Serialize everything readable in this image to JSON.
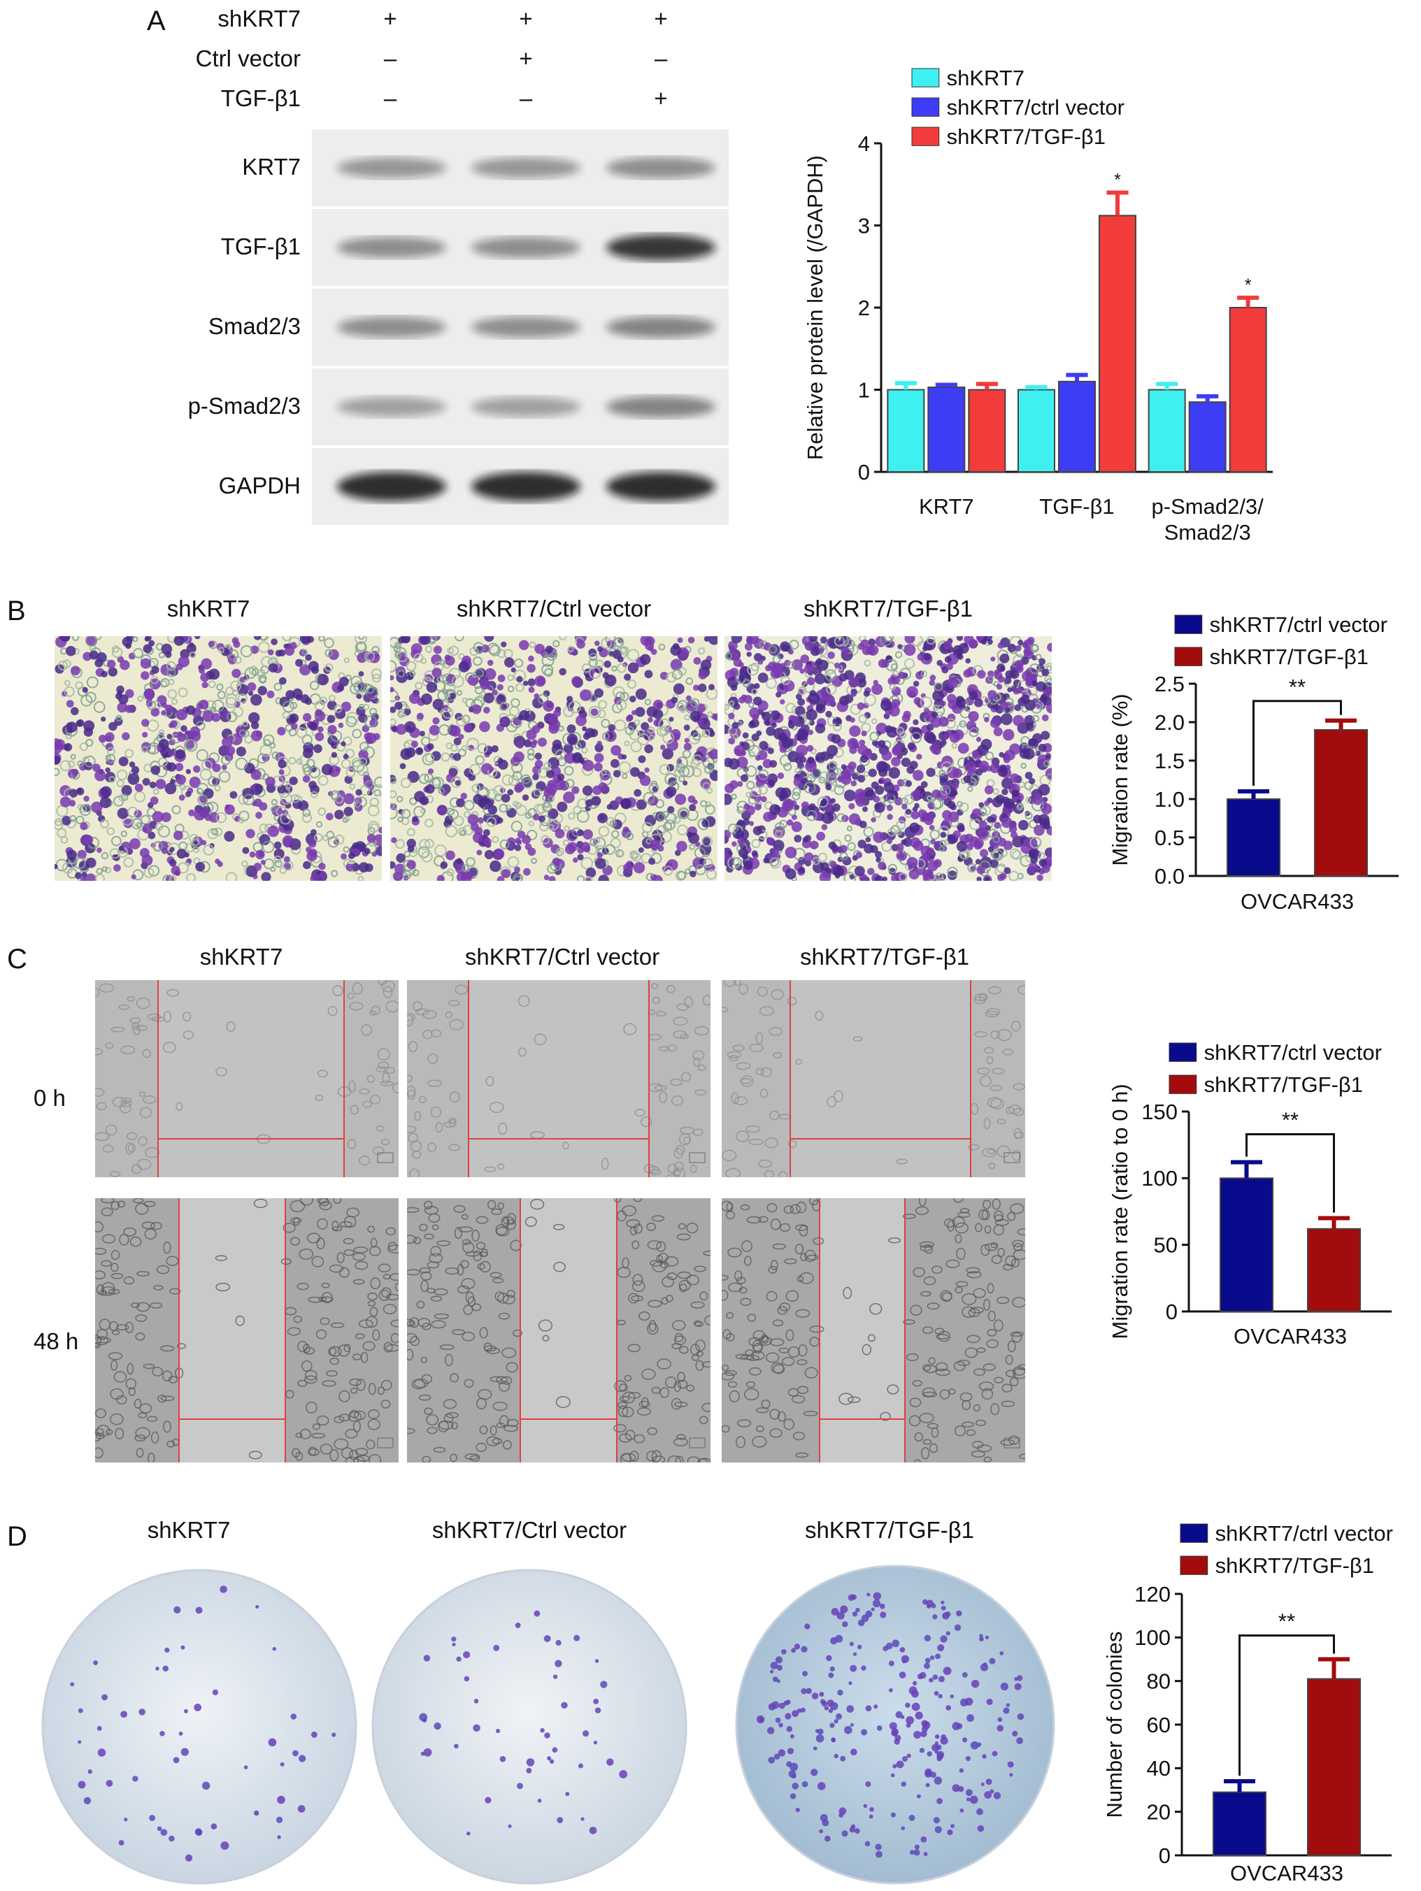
{
  "panels": {
    "a": "A",
    "b": "B",
    "c": "C",
    "d": "D"
  },
  "panel_a": {
    "conditions": [
      {
        "label": "shKRT7",
        "marks": [
          "+",
          "+",
          "+"
        ]
      },
      {
        "label": "Ctrl vector",
        "marks": [
          "–",
          "+",
          "–"
        ]
      },
      {
        "label": "TGF-β1",
        "marks": [
          "–",
          "–",
          "+"
        ]
      }
    ],
    "blot_rows": [
      "KRT7",
      "TGF-β1",
      "Smad2/3",
      "p-Smad2/3",
      "GAPDH"
    ],
    "band_intensity": [
      [
        0.45,
        0.45,
        0.5
      ],
      [
        0.5,
        0.5,
        0.95
      ],
      [
        0.5,
        0.5,
        0.55
      ],
      [
        0.4,
        0.4,
        0.55
      ],
      [
        1.0,
        1.0,
        1.0
      ]
    ]
  },
  "photo_headers": [
    "shKRT7",
    "shKRT7/Ctrl vector",
    "shKRT7/TGF-β1"
  ],
  "panel_c_rows": [
    "0 h",
    "48 h"
  ],
  "chart_data": [
    {
      "type": "bar",
      "panel": "A",
      "ylabel": "Relative protein level (/GAPDH)",
      "ylim": [
        0,
        4
      ],
      "yticks": [
        0,
        1,
        2,
        3,
        4
      ],
      "categories": [
        "KRT7",
        "TGF-β1",
        "p-Smad2/3/\nSmad2/3"
      ],
      "category_lines": [
        [
          "KRT7"
        ],
        [
          "TGF-β1"
        ],
        [
          "p-Smad2/3/",
          "Smad2/3"
        ]
      ],
      "series": [
        {
          "name": "shKRT7",
          "color": "#3ff0f0",
          "values": [
            1.0,
            1.0,
            1.0
          ],
          "errors": [
            0.08,
            0.03,
            0.07
          ],
          "sig": [
            "",
            "",
            ""
          ]
        },
        {
          "name": "shKRT7/ctrl vector",
          "color": "#3d3df5",
          "values": [
            1.03,
            1.1,
            0.85
          ],
          "errors": [
            0.03,
            0.08,
            0.07
          ],
          "sig": [
            "",
            "",
            ""
          ]
        },
        {
          "name": "shKRT7/TGF-β1",
          "color": "#f23c3c",
          "values": [
            1.0,
            3.12,
            2.0
          ],
          "errors": [
            0.07,
            0.28,
            0.12
          ],
          "sig": [
            "",
            "*",
            "*"
          ]
        }
      ],
      "legend": "top"
    },
    {
      "type": "bar",
      "panel": "B",
      "ylabel": "Migration rate (%)",
      "ylim": [
        0,
        2.5
      ],
      "yticks": [
        0.0,
        0.5,
        1.0,
        1.5,
        2.0,
        2.5
      ],
      "categories": [
        "OVCAR433"
      ],
      "series": [
        {
          "name": "shKRT7/ctrl vector",
          "color": "#0a0a8c",
          "values": [
            1.0
          ],
          "errors": [
            0.1
          ]
        },
        {
          "name": "shKRT7/TGF-β1",
          "color": "#a30c0c",
          "values": [
            1.9
          ],
          "errors": [
            0.12
          ]
        }
      ],
      "significance": "**",
      "legend": "top"
    },
    {
      "type": "bar",
      "panel": "C",
      "ylabel": "Migration rate (ratio to 0 h)",
      "ylim": [
        0,
        150
      ],
      "yticks": [
        0,
        50,
        100,
        150
      ],
      "categories": [
        "OVCAR433"
      ],
      "series": [
        {
          "name": "shKRT7/ctrl vector",
          "color": "#0a0a8c",
          "values": [
            100
          ],
          "errors": [
            12
          ]
        },
        {
          "name": "shKRT7/TGF-β1",
          "color": "#a30c0c",
          "values": [
            62
          ],
          "errors": [
            8
          ]
        }
      ],
      "significance": "**",
      "legend": "top"
    },
    {
      "type": "bar",
      "panel": "D",
      "ylabel": "Number of colonies",
      "ylim": [
        0,
        120
      ],
      "yticks": [
        0,
        20,
        40,
        60,
        80,
        100,
        120
      ],
      "categories": [
        "OVCAR433"
      ],
      "series": [
        {
          "name": "shKRT7/ctrl vector",
          "color": "#0a0a8c",
          "values": [
            29
          ],
          "errors": [
            5
          ]
        },
        {
          "name": "shKRT7/TGF-β1",
          "color": "#a30c0c",
          "values": [
            81
          ],
          "errors": [
            9
          ]
        }
      ],
      "significance": "**",
      "legend": "top"
    }
  ]
}
